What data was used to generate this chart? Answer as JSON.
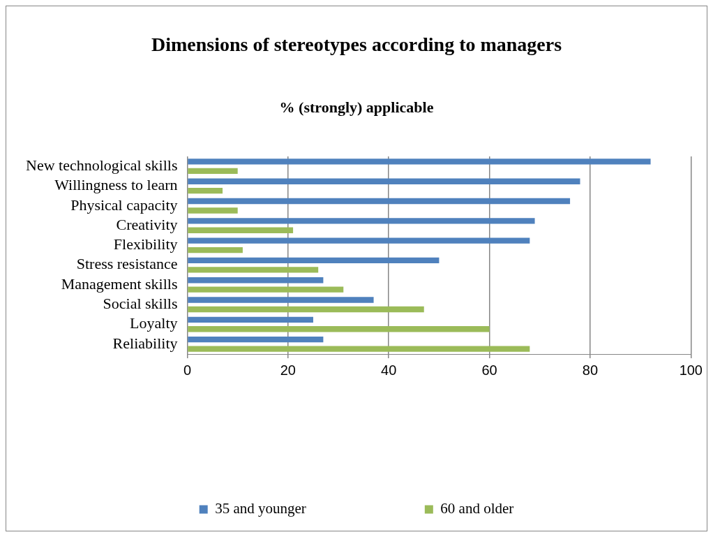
{
  "chart_data": {
    "type": "bar",
    "orientation": "horizontal",
    "title": "Dimensions of stereotypes according to managers",
    "subtitle": "% (strongly) applicable",
    "categories": [
      "New technological skills",
      "Willingness to learn",
      "Physical capacity",
      "Creativity",
      "Flexibility",
      "Stress resistance",
      "Management skills",
      "Social skills",
      "Loyalty",
      "Reliability"
    ],
    "series": [
      {
        "name": "35 and younger",
        "color": "#4f81bd",
        "values": [
          92,
          78,
          76,
          69,
          68,
          50,
          27,
          37,
          25,
          27
        ]
      },
      {
        "name": "60 and older",
        "color": "#9bbb59",
        "values": [
          10,
          7,
          10,
          21,
          11,
          26,
          31,
          47,
          60,
          68
        ]
      }
    ],
    "xlim": [
      0,
      100
    ],
    "xticks": [
      0,
      20,
      40,
      60,
      80,
      100
    ],
    "grid": "x",
    "legend": "bottom"
  }
}
